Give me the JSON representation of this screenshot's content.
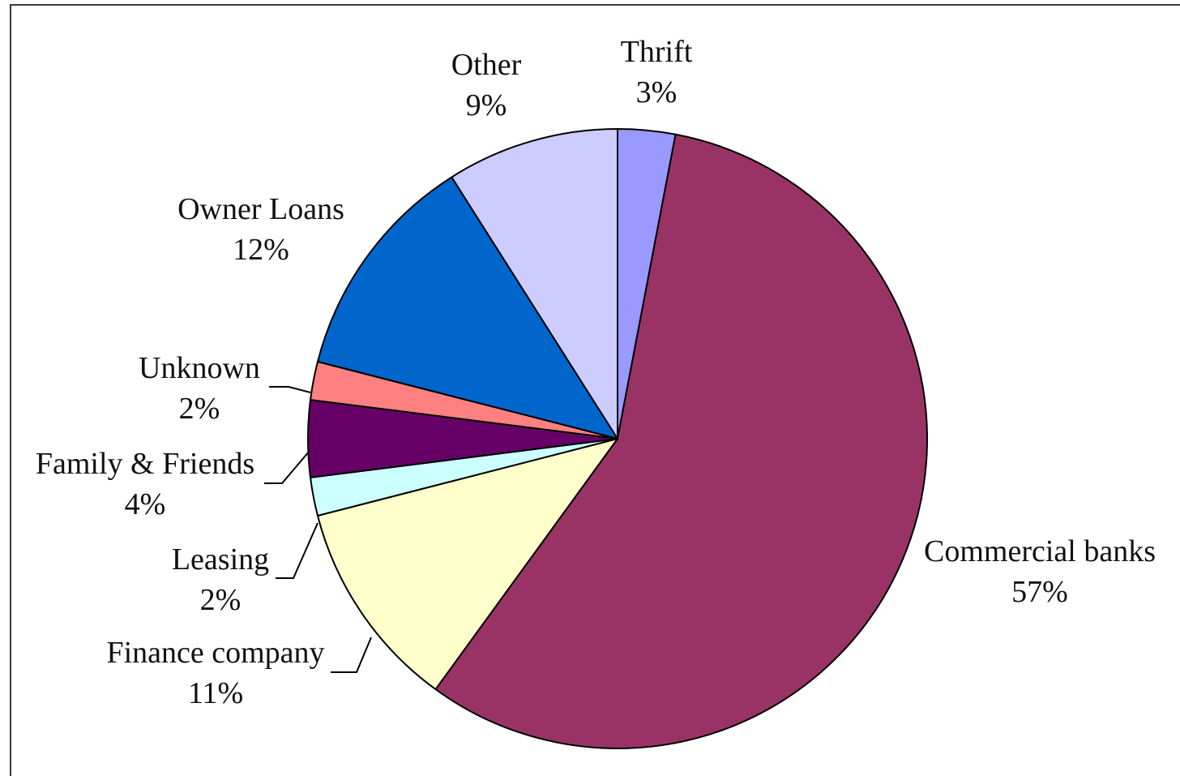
{
  "chart_data": {
    "type": "pie",
    "title": "",
    "slices": [
      {
        "label": "Thrift",
        "value": 3,
        "value_label": "3%",
        "color": "#9999ff"
      },
      {
        "label": "Commercial banks",
        "value": 57,
        "value_label": "57%",
        "color": "#993366"
      },
      {
        "label": "Finance company",
        "value": 11,
        "value_label": "11%",
        "color": "#ffffcc"
      },
      {
        "label": "Leasing",
        "value": 2,
        "value_label": "2%",
        "color": "#ccffff"
      },
      {
        "label": "Family & Friends",
        "value": 4,
        "value_label": "4%",
        "color": "#660066"
      },
      {
        "label": "Unknown",
        "value": 2,
        "value_label": "2%",
        "color": "#ff8080"
      },
      {
        "label": "Owner Loans",
        "value": 12,
        "value_label": "12%",
        "color": "#0066cc"
      },
      {
        "label": "Other",
        "value": 9,
        "value_label": "9%",
        "color": "#ccccff"
      }
    ],
    "start_angle": "12 o'clock",
    "direction": "clockwise",
    "legend": "none",
    "labels": "outside slices with leader lines"
  }
}
